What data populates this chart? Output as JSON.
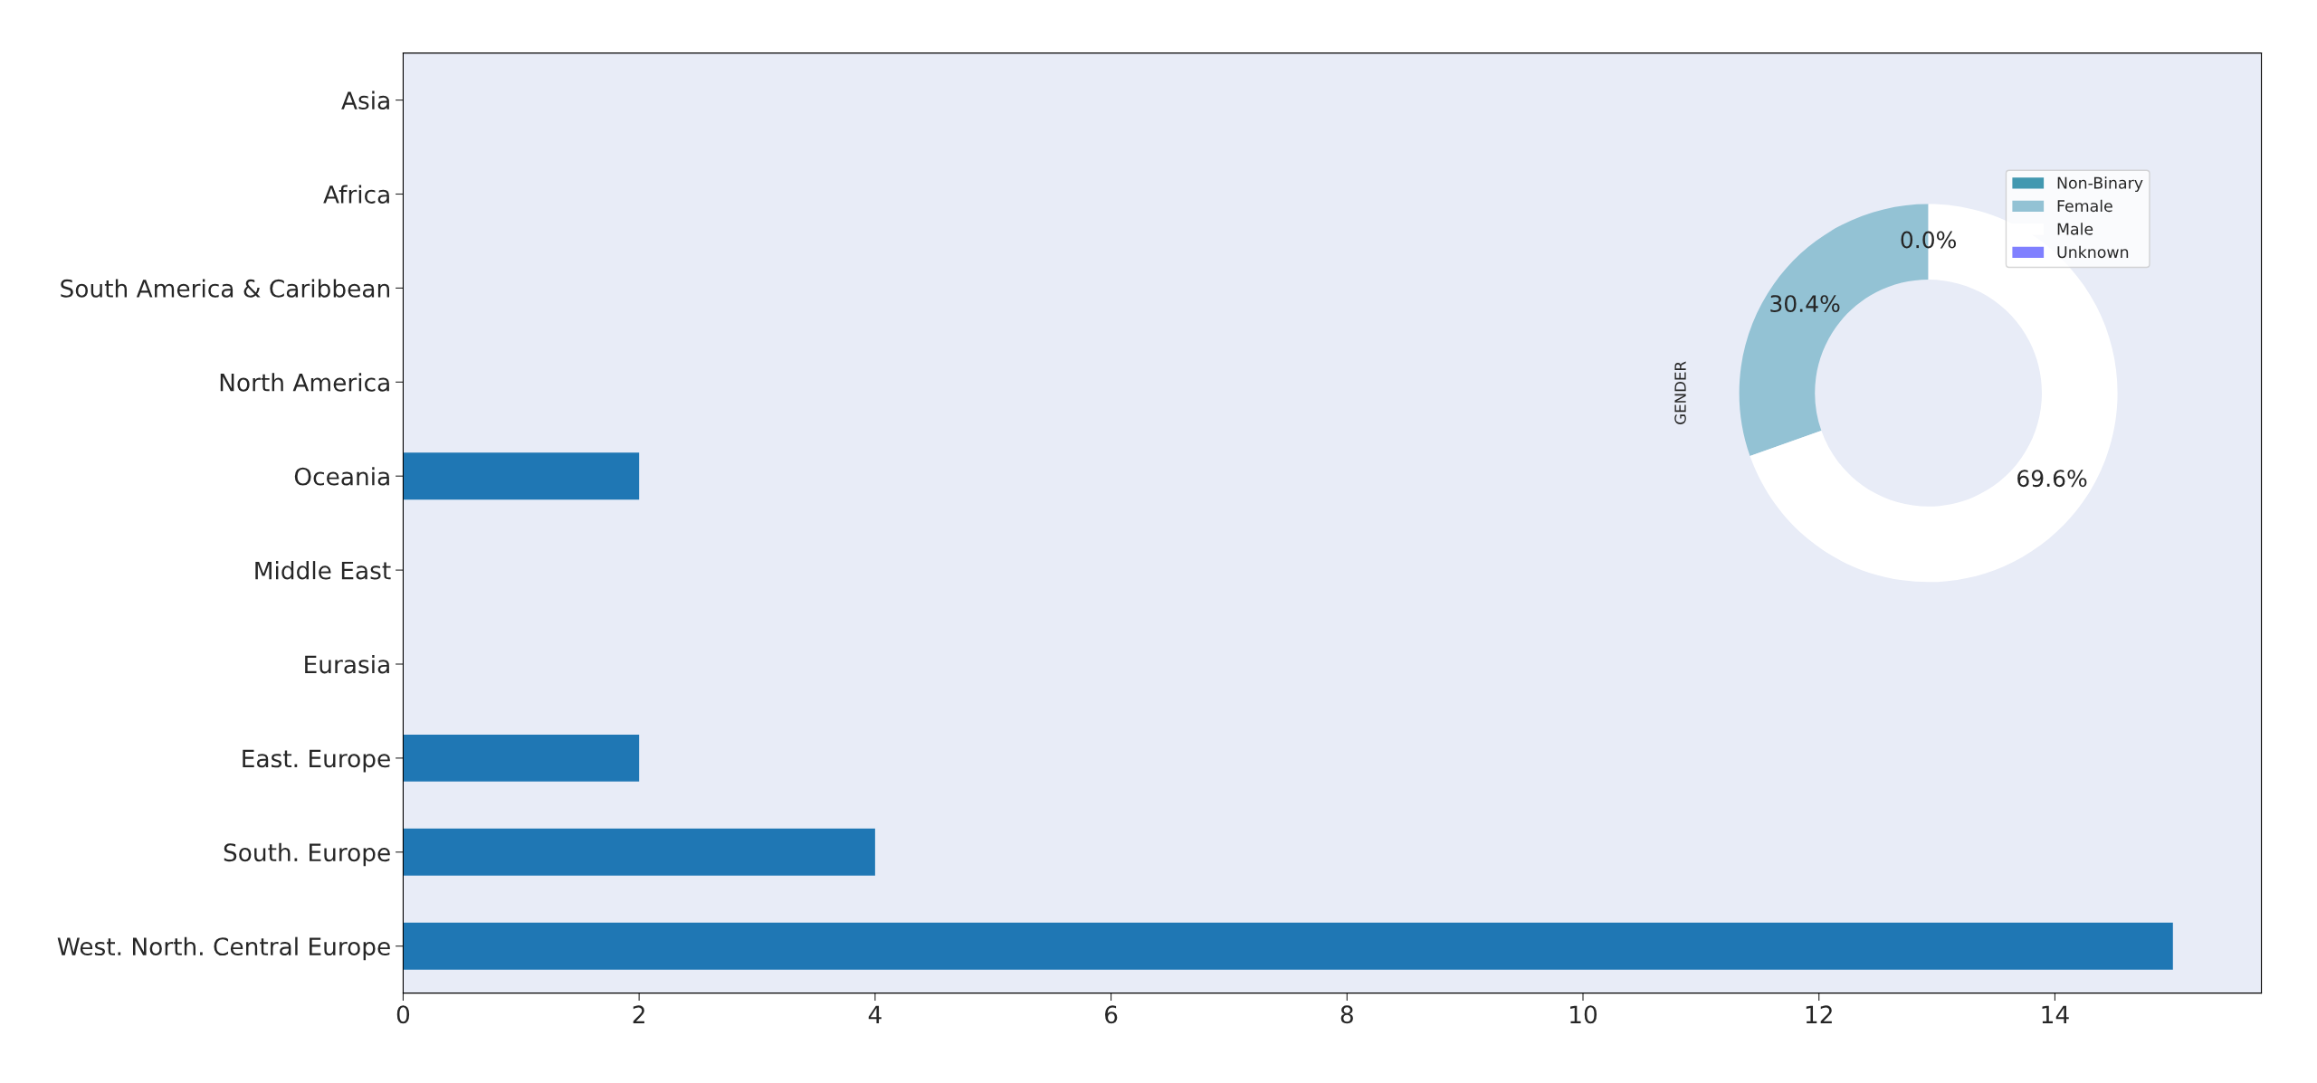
{
  "chart_data": [
    {
      "type": "bar",
      "orientation": "horizontal",
      "categories": [
        "Asia",
        "Africa",
        "South America & Caribbean",
        "North America",
        "Oceania",
        "Middle East",
        "Eurasia",
        "East. Europe",
        "South. Europe",
        "West. North. Central Europe"
      ],
      "values": [
        0,
        0,
        0,
        0,
        2,
        0,
        0,
        2,
        4,
        15
      ],
      "color": "#1f77b4",
      "xlim": [
        0,
        15.75
      ],
      "xticks": [
        0,
        2,
        4,
        6,
        8,
        10,
        12,
        14
      ],
      "grid": false
    },
    {
      "type": "donut",
      "ylabel": "GENDER",
      "categories": [
        "Non-Binary",
        "Female",
        "Male",
        "Unknown"
      ],
      "values": [
        0,
        30.4,
        69.6,
        null
      ],
      "value_labels": [
        "0.0%",
        "30.4%",
        "69.6%",
        null
      ],
      "colors": [
        "#4298b0",
        "#93c2d4",
        "#ffffff",
        "#8080ff"
      ],
      "legend": "top right"
    }
  ]
}
